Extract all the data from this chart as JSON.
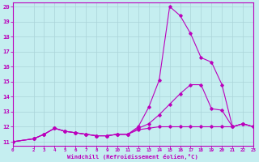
{
  "xlabel": "Windchill (Refroidissement éolien,°C)",
  "bg_color": "#c5eef0",
  "grid_color": "#aad4d8",
  "line_color": "#bb00bb",
  "xlim": [
    0,
    23
  ],
  "ylim": [
    10.75,
    20.25
  ],
  "xticks": [
    0,
    2,
    3,
    4,
    5,
    6,
    7,
    8,
    9,
    10,
    11,
    12,
    13,
    14,
    15,
    16,
    17,
    18,
    19,
    20,
    21,
    22,
    23
  ],
  "yticks": [
    11,
    12,
    13,
    14,
    15,
    16,
    17,
    18,
    19,
    20
  ],
  "series": [
    {
      "x": [
        0,
        2,
        3,
        4,
        5,
        6,
        7,
        8,
        9,
        10,
        11,
        12,
        13,
        14,
        15,
        16,
        17,
        18,
        19,
        20,
        21,
        22,
        23
      ],
      "y": [
        11.0,
        11.2,
        11.5,
        11.9,
        11.7,
        11.6,
        11.5,
        11.4,
        11.4,
        11.5,
        11.5,
        12.0,
        13.3,
        15.1,
        20.0,
        19.4,
        18.2,
        16.6,
        16.3,
        14.8,
        12.0,
        12.2,
        12.0
      ]
    },
    {
      "x": [
        0,
        2,
        3,
        4,
        5,
        6,
        7,
        8,
        9,
        10,
        11,
        12,
        13,
        14,
        15,
        16,
        17,
        18,
        19,
        20,
        21,
        22,
        23
      ],
      "y": [
        11.0,
        11.2,
        11.5,
        11.9,
        11.7,
        11.6,
        11.5,
        11.4,
        11.4,
        11.5,
        11.5,
        11.9,
        12.2,
        12.8,
        13.5,
        14.2,
        14.8,
        14.8,
        13.2,
        13.1,
        12.0,
        12.2,
        12.0
      ]
    },
    {
      "x": [
        0,
        2,
        3,
        4,
        5,
        6,
        7,
        8,
        9,
        10,
        11,
        12,
        13,
        14,
        15,
        16,
        17,
        18,
        19,
        20,
        21,
        22,
        23
      ],
      "y": [
        11.0,
        11.2,
        11.5,
        11.9,
        11.7,
        11.6,
        11.5,
        11.4,
        11.4,
        11.5,
        11.5,
        11.8,
        11.9,
        12.0,
        12.0,
        12.0,
        12.0,
        12.0,
        12.0,
        12.0,
        12.0,
        12.2,
        12.0
      ]
    }
  ]
}
